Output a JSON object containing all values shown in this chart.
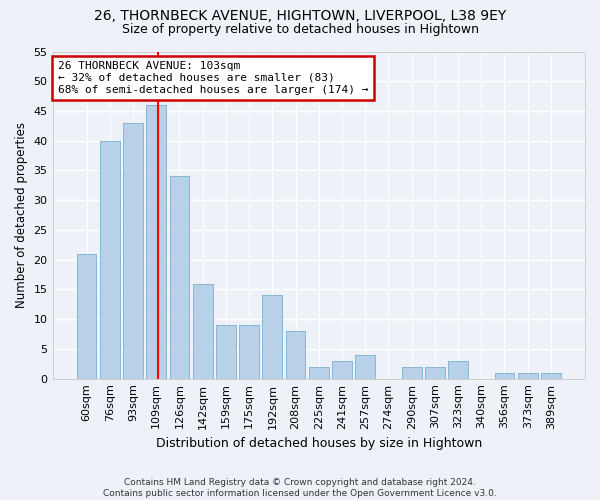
{
  "title1": "26, THORNBECK AVENUE, HIGHTOWN, LIVERPOOL, L38 9EY",
  "title2": "Size of property relative to detached houses in Hightown",
  "xlabel": "Distribution of detached houses by size in Hightown",
  "ylabel": "Number of detached properties",
  "categories": [
    "60sqm",
    "76sqm",
    "93sqm",
    "109sqm",
    "126sqm",
    "142sqm",
    "159sqm",
    "175sqm",
    "192sqm",
    "208sqm",
    "225sqm",
    "241sqm",
    "257sqm",
    "274sqm",
    "290sqm",
    "307sqm",
    "323sqm",
    "340sqm",
    "356sqm",
    "373sqm",
    "389sqm"
  ],
  "values": [
    21,
    40,
    43,
    46,
    34,
    16,
    9,
    9,
    14,
    8,
    2,
    3,
    4,
    0,
    2,
    2,
    3,
    0,
    1,
    1,
    1
  ],
  "bar_color": "#b8d0e8",
  "bar_edge_color": "#7aafd4",
  "background_color": "#eef2f8",
  "grid_color": "#ffffff",
  "red_line_x": 3.06,
  "annotation_line1": "26 THORNBECK AVENUE: 103sqm",
  "annotation_line2": "← 32% of detached houses are smaller (83)",
  "annotation_line3": "68% of semi-detached houses are larger (174) →",
  "annotation_box_color": "#ffffff",
  "annotation_box_edge": "#cc0000",
  "footer": "Contains HM Land Registry data © Crown copyright and database right 2024.\nContains public sector information licensed under the Open Government Licence v3.0.",
  "ylim": [
    0,
    55
  ],
  "yticks": [
    0,
    5,
    10,
    15,
    20,
    25,
    30,
    35,
    40,
    45,
    50,
    55
  ]
}
